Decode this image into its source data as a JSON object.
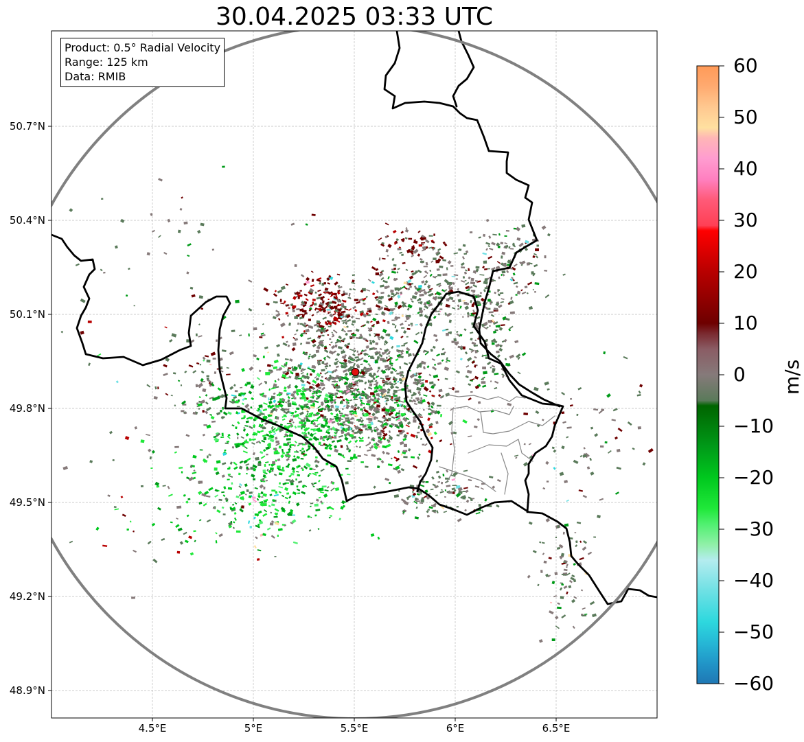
{
  "title": "30.04.2025 03:33 UTC",
  "info_box": {
    "product": "Product: 0.5° Radial Velocity",
    "range": "Range: 125 km",
    "data": "Data: RMIB"
  },
  "map": {
    "lat_ticks": [
      "50.7°N",
      "50.4°N",
      "50.1°N",
      "49.8°N",
      "49.5°N",
      "49.2°N",
      "48.9°N"
    ],
    "lon_ticks": [
      "4.5°E",
      "5°E",
      "5.5°E",
      "6°E",
      "6.5°E"
    ],
    "radar_site": {
      "lon": 5.505,
      "lat": 49.914
    },
    "range_km": 125,
    "colors": {
      "range_ring": "#808080",
      "border": "#000000",
      "region": "#888888",
      "grid": "#bbbbbb",
      "site_marker": "#e11010"
    }
  },
  "colorbar": {
    "unit": "m/s",
    "min": -60,
    "max": 60,
    "ticks": [
      "60",
      "50",
      "40",
      "30",
      "20",
      "10",
      "0",
      "−10",
      "−20",
      "−30",
      "−40",
      "−50",
      "−60"
    ],
    "stops": [
      {
        "v": -60,
        "color": "#1f77b4"
      },
      {
        "v": -56,
        "color": "#2196c8"
      },
      {
        "v": -52,
        "color": "#26b8d6"
      },
      {
        "v": -48,
        "color": "#2dd8de"
      },
      {
        "v": -42,
        "color": "#6ee0e4"
      },
      {
        "v": -36,
        "color": "#b4ecef"
      },
      {
        "v": -33,
        "color": "#90f0a8"
      },
      {
        "v": -29,
        "color": "#50f070"
      },
      {
        "v": -26,
        "color": "#20e83a"
      },
      {
        "v": -20,
        "color": "#00c81e"
      },
      {
        "v": -14,
        "color": "#009a18"
      },
      {
        "v": -6,
        "color": "#006400"
      },
      {
        "v": -5,
        "color": "#5a7a5a"
      },
      {
        "v": 0,
        "color": "#867a7a"
      },
      {
        "v": 5,
        "color": "#8a5c64"
      },
      {
        "v": 8,
        "color": "#7a2a30"
      },
      {
        "v": 10,
        "color": "#6e0000"
      },
      {
        "v": 20,
        "color": "#b80000"
      },
      {
        "v": 28,
        "color": "#ff0000"
      },
      {
        "v": 29,
        "color": "#ff4055"
      },
      {
        "v": 34,
        "color": "#ff5a78"
      },
      {
        "v": 38,
        "color": "#ff80c0"
      },
      {
        "v": 42,
        "color": "#ff9cd0"
      },
      {
        "v": 46,
        "color": "#ffb6b6"
      },
      {
        "v": 48,
        "color": "#ffe0a0"
      },
      {
        "v": 52,
        "color": "#ffc890"
      },
      {
        "v": 56,
        "color": "#ffaa70"
      },
      {
        "v": 60,
        "color": "#ff9a58"
      }
    ]
  }
}
